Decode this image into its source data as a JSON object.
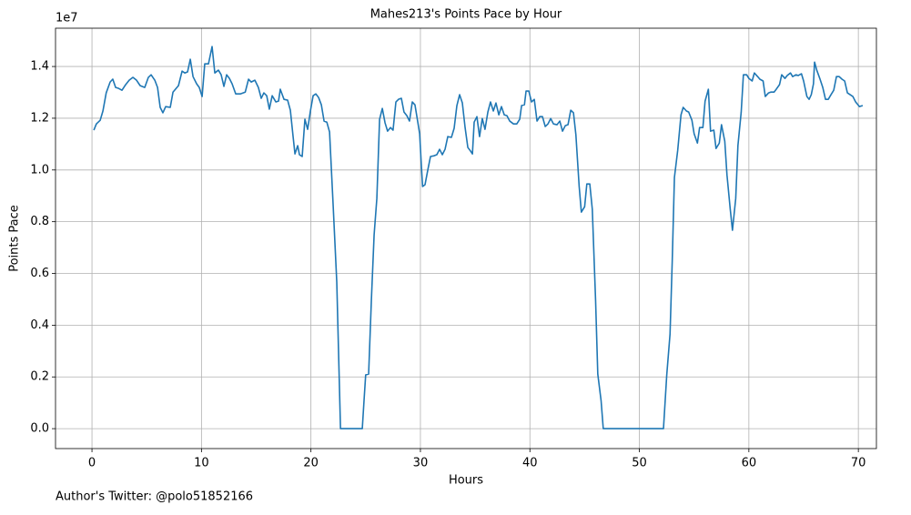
{
  "chart_data": {
    "type": "line",
    "title": "Mahes213's Points Pace by Hour",
    "x_label": "Hours",
    "y_label": "Points Pace",
    "y_scale_label": "1e7",
    "footnote": "Author's Twitter: @polo51852166",
    "xlim": [
      -3.33,
      71.65
    ],
    "ylim": [
      -0.077,
      1.548
    ],
    "xticks": [
      0,
      10,
      20,
      30,
      40,
      50,
      60,
      70
    ],
    "yticks": [
      {
        "value": 0,
        "label": "0.0"
      },
      0.2,
      0.4,
      0.6,
      0.8,
      {
        "value": 1,
        "label": "1.0"
      },
      1.2,
      1.4
    ],
    "grid": true,
    "series": [
      {
        "name": "Points Pace",
        "color": "#1f77b4",
        "x": [
          0.17,
          0.4,
          0.75,
          1.0,
          1.3,
          1.66,
          1.9,
          2.16,
          2.4,
          2.74,
          3.08,
          3.4,
          3.74,
          4.07,
          4.4,
          4.82,
          5.15,
          5.4,
          5.74,
          5.99,
          6.23,
          6.48,
          6.73,
          7.15,
          7.4,
          7.9,
          8.23,
          8.48,
          8.73,
          8.98,
          9.23,
          9.56,
          9.8,
          10.06,
          10.3,
          10.64,
          10.97,
          11.22,
          11.55,
          11.8,
          12.05,
          12.3,
          12.55,
          12.8,
          13.13,
          13.55,
          14.0,
          14.3,
          14.55,
          14.88,
          15.2,
          15.46,
          15.7,
          15.96,
          16.2,
          16.46,
          16.8,
          17.04,
          17.2,
          17.54,
          17.87,
          18.12,
          18.37,
          18.54,
          18.79,
          18.95,
          19.2,
          19.45,
          19.7,
          19.95,
          20.2,
          20.45,
          20.7,
          20.95,
          21.2,
          21.45,
          21.7,
          22.03,
          22.36,
          22.7,
          24.69,
          24.85,
          25.0,
          25.27,
          25.52,
          25.77,
          26.02,
          26.27,
          26.52,
          26.77,
          27.0,
          27.27,
          27.5,
          27.76,
          28.0,
          28.26,
          28.5,
          28.76,
          29.0,
          29.26,
          29.5,
          29.76,
          29.93,
          30.1,
          30.2,
          30.42,
          30.67,
          30.92,
          31.26,
          31.5,
          31.75,
          32.0,
          32.25,
          32.5,
          32.83,
          33.08,
          33.33,
          33.58,
          33.83,
          34.08,
          34.33,
          34.58,
          34.75,
          34.91,
          35.16,
          35.4,
          35.65,
          35.9,
          36.16,
          36.4,
          36.66,
          36.9,
          37.16,
          37.4,
          37.66,
          37.9,
          38.16,
          38.5,
          38.8,
          39.07,
          39.24,
          39.5,
          39.65,
          39.9,
          40.15,
          40.4,
          40.65,
          40.9,
          41.15,
          41.4,
          41.65,
          41.9,
          42.15,
          42.48,
          42.73,
          42.98,
          43.23,
          43.48,
          43.73,
          43.98,
          44.2,
          44.5,
          44.7,
          45.0,
          45.2,
          45.47,
          45.7,
          46.0,
          46.2,
          46.5,
          46.7,
          52.2,
          52.5,
          52.8,
          53.0,
          53.2,
          53.5,
          53.8,
          54.0,
          54.3,
          54.5,
          54.8,
          55.0,
          55.3,
          55.5,
          55.8,
          56.0,
          56.3,
          56.5,
          56.8,
          57.0,
          57.3,
          57.5,
          57.8,
          58.0,
          58.3,
          58.5,
          58.8,
          59.0,
          59.3,
          59.5,
          59.8,
          60.0,
          60.3,
          60.5,
          60.8,
          61.0,
          61.3,
          61.5,
          61.8,
          62.0,
          62.3,
          62.5,
          62.8,
          63.0,
          63.3,
          63.5,
          63.8,
          64.0,
          64.3,
          64.5,
          64.8,
          65.0,
          65.3,
          65.5,
          65.7,
          65.9,
          66.0,
          66.2,
          66.5,
          66.75,
          67.0,
          67.25,
          67.5,
          67.75,
          68.0,
          68.25,
          68.5,
          68.75,
          69.0,
          69.25,
          69.5,
          69.75,
          70.1,
          70.4
        ],
        "values": [
          1.154,
          1.178,
          1.192,
          1.228,
          1.298,
          1.34,
          1.351,
          1.319,
          1.316,
          1.308,
          1.33,
          1.347,
          1.358,
          1.347,
          1.326,
          1.319,
          1.358,
          1.368,
          1.347,
          1.319,
          1.242,
          1.221,
          1.245,
          1.242,
          1.301,
          1.326,
          1.382,
          1.375,
          1.379,
          1.428,
          1.361,
          1.333,
          1.319,
          1.284,
          1.41,
          1.41,
          1.477,
          1.375,
          1.386,
          1.368,
          1.323,
          1.368,
          1.354,
          1.333,
          1.294,
          1.294,
          1.301,
          1.351,
          1.34,
          1.347,
          1.319,
          1.277,
          1.298,
          1.287,
          1.235,
          1.287,
          1.263,
          1.266,
          1.312,
          1.273,
          1.27,
          1.231,
          1.129,
          1.062,
          1.094,
          1.059,
          1.052,
          1.196,
          1.157,
          1.228,
          1.287,
          1.294,
          1.28,
          1.252,
          1.189,
          1.185,
          1.147,
          0.862,
          0.566,
          0,
          0,
          0.109,
          0.208,
          0.211,
          0.496,
          0.749,
          0.89,
          1.196,
          1.238,
          1.182,
          1.15,
          1.164,
          1.154,
          1.263,
          1.273,
          1.277,
          1.224,
          1.21,
          1.189,
          1.263,
          1.252,
          1.185,
          1.14,
          1.006,
          0.936,
          0.943,
          0.999,
          1.052,
          1.055,
          1.059,
          1.08,
          1.059,
          1.08,
          1.129,
          1.126,
          1.161,
          1.249,
          1.291,
          1.259,
          1.164,
          1.087,
          1.073,
          1.062,
          1.185,
          1.206,
          1.129,
          1.199,
          1.157,
          1.224,
          1.263,
          1.228,
          1.259,
          1.213,
          1.245,
          1.213,
          1.21,
          1.189,
          1.178,
          1.178,
          1.196,
          1.249,
          1.252,
          1.305,
          1.305,
          1.263,
          1.273,
          1.189,
          1.206,
          1.206,
          1.168,
          1.178,
          1.199,
          1.178,
          1.175,
          1.189,
          1.15,
          1.171,
          1.175,
          1.231,
          1.221,
          1.136,
          0.936,
          0.837,
          0.858,
          0.946,
          0.946,
          0.848,
          0.496,
          0.211,
          0.109,
          0,
          0,
          0.208,
          0.366,
          0.647,
          0.971,
          1.076,
          1.213,
          1.242,
          1.228,
          1.224,
          1.192,
          1.14,
          1.104,
          1.164,
          1.164,
          1.266,
          1.312,
          1.15,
          1.154,
          1.083,
          1.104,
          1.175,
          1.111,
          0.981,
          0.848,
          0.767,
          0.89,
          1.094,
          1.224,
          1.368,
          1.368,
          1.354,
          1.344,
          1.375,
          1.361,
          1.351,
          1.344,
          1.284,
          1.298,
          1.301,
          1.301,
          1.312,
          1.33,
          1.368,
          1.354,
          1.365,
          1.375,
          1.361,
          1.368,
          1.365,
          1.372,
          1.344,
          1.284,
          1.273,
          1.291,
          1.333,
          1.417,
          1.386,
          1.351,
          1.319,
          1.273,
          1.273,
          1.291,
          1.308,
          1.361,
          1.361,
          1.351,
          1.344,
          1.298,
          1.291,
          1.284,
          1.263,
          1.245,
          1.249
        ]
      }
    ]
  }
}
